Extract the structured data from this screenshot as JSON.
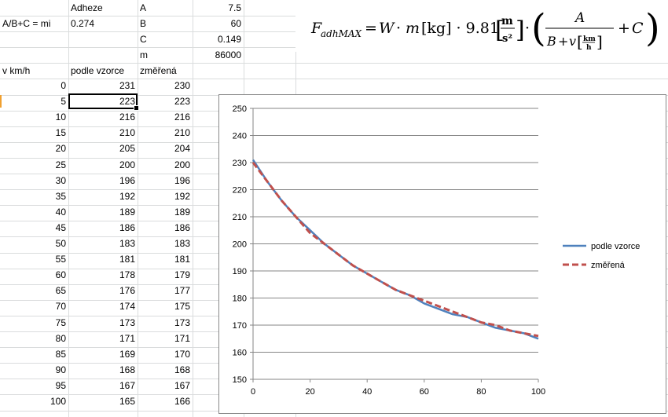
{
  "params": {
    "adheze_label": "Adheze",
    "formula_label": "A/B+C = mi",
    "mi_value": "0.274",
    "A": {
      "label": "A",
      "value": "7.5"
    },
    "B": {
      "label": "B",
      "value": "60"
    },
    "C": {
      "label": "C",
      "value": "0.149"
    },
    "m": {
      "label": "m",
      "value": "86000"
    }
  },
  "formula": "F_adhMAX = W · m [kg] · 9.81 [m/s²] · ( A / (B + v [km/h]) + C )",
  "table": {
    "headers": [
      "v km/h",
      "podle vzorce",
      "změřená"
    ],
    "rows": [
      [
        "0",
        "231",
        "230"
      ],
      [
        "5",
        "223",
        "223"
      ],
      [
        "10",
        "216",
        "216"
      ],
      [
        "15",
        "210",
        "210"
      ],
      [
        "20",
        "205",
        "204"
      ],
      [
        "25",
        "200",
        "200"
      ],
      [
        "30",
        "196",
        "196"
      ],
      [
        "35",
        "192",
        "192"
      ],
      [
        "40",
        "189",
        "189"
      ],
      [
        "45",
        "186",
        "186"
      ],
      [
        "50",
        "183",
        "183"
      ],
      [
        "55",
        "181",
        "181"
      ],
      [
        "60",
        "178",
        "179"
      ],
      [
        "65",
        "176",
        "177"
      ],
      [
        "70",
        "174",
        "175"
      ],
      [
        "75",
        "173",
        "173"
      ],
      [
        "80",
        "171",
        "171"
      ],
      [
        "85",
        "169",
        "170"
      ],
      [
        "90",
        "168",
        "168"
      ],
      [
        "95",
        "167",
        "167"
      ],
      [
        "100",
        "165",
        "166"
      ]
    ]
  },
  "chart_data": {
    "type": "line",
    "x": [
      0,
      5,
      10,
      15,
      20,
      25,
      30,
      35,
      40,
      45,
      50,
      55,
      60,
      65,
      70,
      75,
      80,
      85,
      90,
      95,
      100
    ],
    "series": [
      {
        "name": "podle vzorce",
        "color": "#4f81bd",
        "style": "solid",
        "values": [
          231,
          223,
          216,
          210,
          205,
          200,
          196,
          192,
          189,
          186,
          183,
          181,
          178,
          176,
          174,
          173,
          171,
          169,
          168,
          167,
          165
        ]
      },
      {
        "name": "změřená",
        "color": "#c0504d",
        "style": "dashed",
        "values": [
          230,
          223,
          216,
          210,
          204,
          200,
          196,
          192,
          189,
          186,
          183,
          181,
          179,
          177,
          175,
          173,
          171,
          170,
          168,
          167,
          166
        ]
      }
    ],
    "xlim": [
      0,
      100
    ],
    "ylim": [
      150,
      250
    ],
    "xticks": [
      0,
      20,
      40,
      60,
      80,
      100
    ],
    "yticks": [
      150,
      160,
      170,
      180,
      190,
      200,
      210,
      220,
      230,
      240,
      250
    ],
    "grid": "horizontal",
    "legend": "right"
  }
}
